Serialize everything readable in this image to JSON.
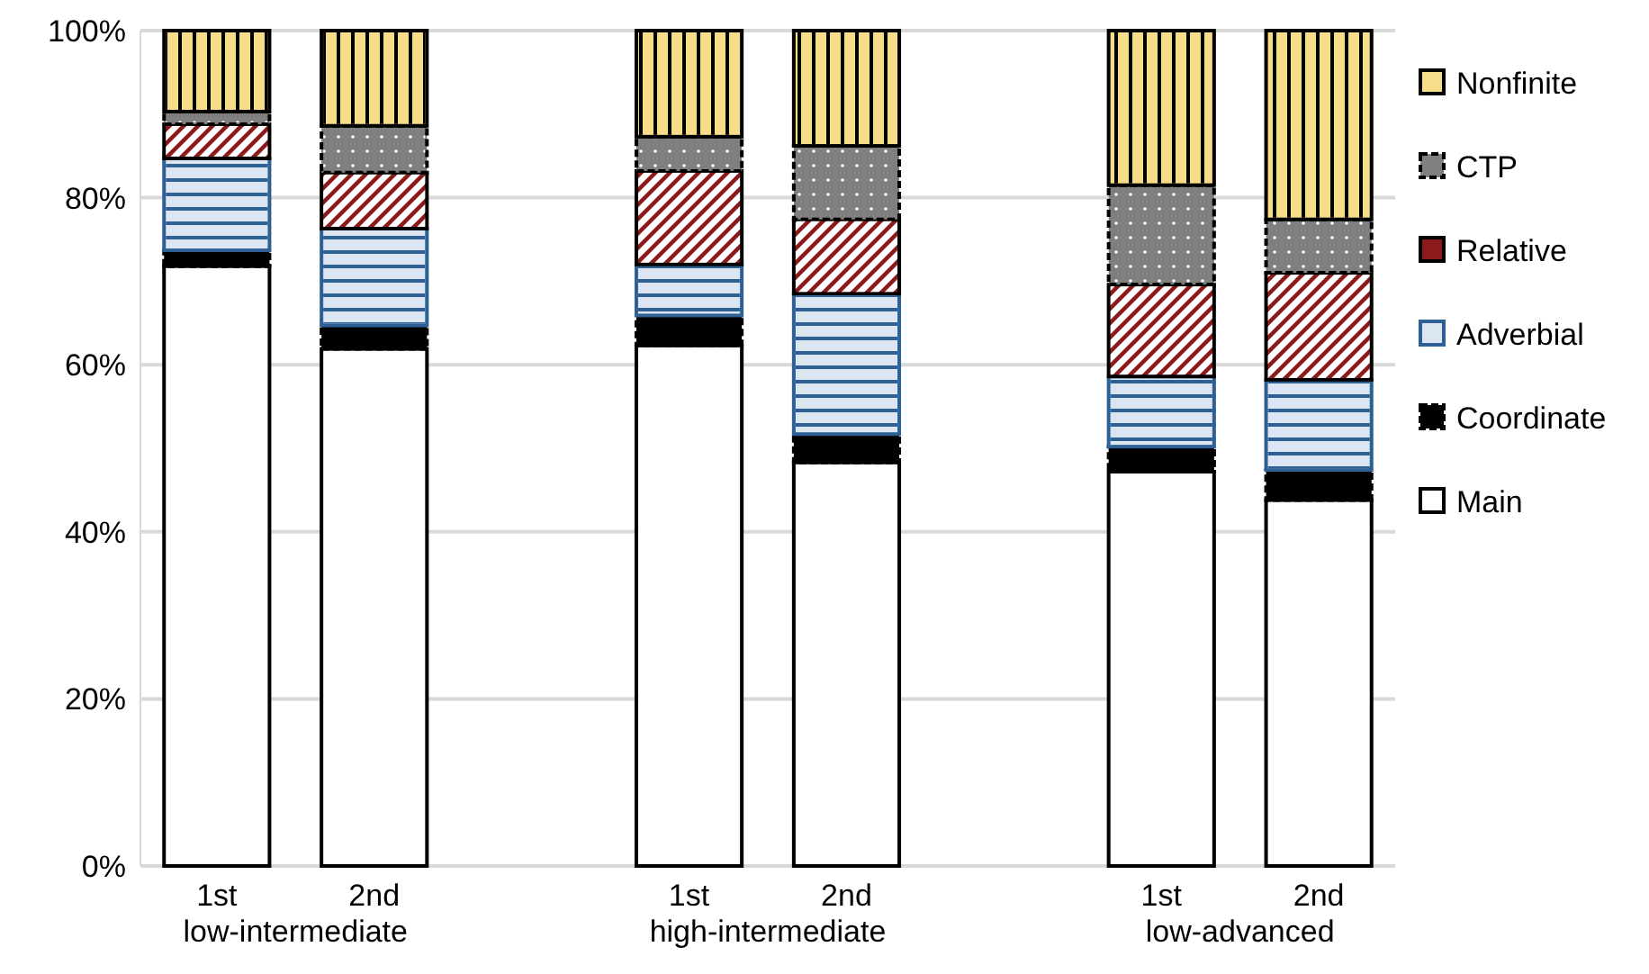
{
  "chart_data": {
    "type": "bar",
    "stacked": true,
    "categories": [
      "1st",
      "2nd",
      null,
      "1st",
      "2nd",
      null,
      "1st",
      "2nd"
    ],
    "series": [
      {
        "name": "Main",
        "color": "#ffffff",
        "values": [
          71.8,
          61.9,
          null,
          62.3,
          48.3,
          null,
          47.2,
          43.8
        ]
      },
      {
        "name": "Coordinate",
        "color": "#000000",
        "values": [
          1.9,
          2.8,
          null,
          3.6,
          3.4,
          null,
          3.0,
          3.6
        ]
      },
      {
        "name": "Adverbial",
        "color": "#dce6f2",
        "values": [
          11.0,
          11.6,
          null,
          6.1,
          16.8,
          null,
          8.4,
          10.8
        ]
      },
      {
        "name": "Relative",
        "color": "#8b1a1a",
        "values": [
          4.1,
          6.7,
          null,
          11.2,
          8.9,
          null,
          11.0,
          12.8
        ]
      },
      {
        "name": "CTP",
        "color": "#7f7f7f",
        "values": [
          1.5,
          5.6,
          null,
          4.1,
          8.8,
          null,
          11.9,
          6.4
        ]
      },
      {
        "name": "Nonfinite",
        "color": "#f7dc8a",
        "values": [
          9.7,
          11.4,
          null,
          12.7,
          13.8,
          null,
          18.5,
          22.6
        ]
      }
    ],
    "annotations": [
      "low-intermediate",
      "high-intermediate",
      "low-advanced"
    ],
    "ylim": [
      0,
      100
    ],
    "yticks": [
      {
        "value": 0,
        "label": "0%"
      },
      {
        "value": 20,
        "label": "20%"
      },
      {
        "value": 40,
        "label": "40%"
      },
      {
        "value": 60,
        "label": "60%"
      },
      {
        "value": 80,
        "label": "80%"
      },
      {
        "value": 100,
        "label": "100%"
      }
    ],
    "grid": "y",
    "legend": "right"
  }
}
